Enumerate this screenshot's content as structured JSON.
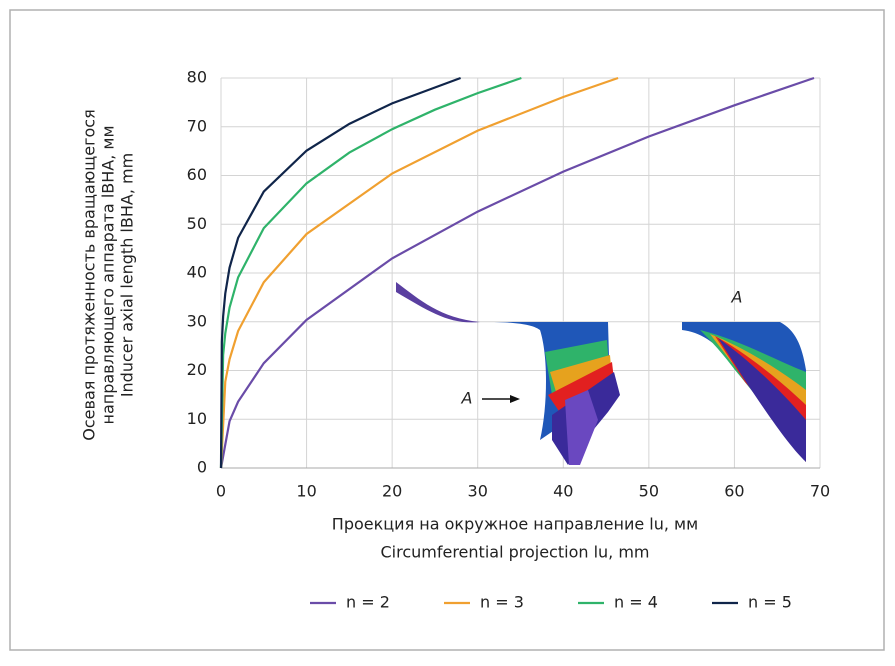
{
  "chart_data": {
    "type": "line",
    "xlabel": [
      "Проекция на окружное направление lu, мм",
      "Circumferential projection lu, mm"
    ],
    "ylabel": [
      "Осевая протяженность вращающегося",
      "направляющего аппарата lВНА, мм",
      "Inducer axial length lВНА, mm"
    ],
    "xlim": [
      0,
      70
    ],
    "xticks": [
      0,
      10,
      20,
      30,
      40,
      50,
      60,
      70
    ],
    "ylim": [
      0,
      80
    ],
    "yticks": [
      0,
      10,
      20,
      30,
      40,
      50,
      60,
      70,
      80
    ],
    "grid": true,
    "legend": "bottom",
    "annotations": [
      "A",
      "A"
    ],
    "series": [
      {
        "name": "n = 2",
        "color": "#6a4ca8",
        "x": [
          0,
          1,
          2,
          5,
          10,
          20,
          30,
          40,
          50,
          60,
          69.3
        ],
        "values": [
          0,
          9.6,
          13.6,
          21.5,
          30.4,
          43.0,
          52.6,
          60.8,
          68.0,
          74.4,
          80
        ]
      },
      {
        "name": "n = 3",
        "color": "#f0a030",
        "x": [
          0,
          0.5,
          1,
          2,
          5,
          10,
          20,
          30,
          40,
          46.4
        ],
        "values": [
          0,
          17.7,
          22.3,
          28.1,
          38.1,
          48.0,
          60.4,
          69.2,
          76.1,
          80
        ]
      },
      {
        "name": "n = 4",
        "color": "#2fb36a",
        "x": [
          0,
          0.25,
          0.5,
          1,
          2,
          5,
          10,
          15,
          20,
          25,
          30,
          35.1
        ],
        "values": [
          0,
          23.2,
          27.6,
          32.9,
          39.1,
          49.2,
          58.4,
          64.7,
          69.5,
          73.5,
          76.9,
          80
        ]
      },
      {
        "name": "n = 5",
        "color": "#10254a",
        "x": [
          0,
          0.1,
          0.25,
          0.5,
          1,
          2,
          5,
          10,
          15,
          20,
          28
        ],
        "values": [
          0,
          25.9,
          31.1,
          35.8,
          41.1,
          47.2,
          56.7,
          65.1,
          70.6,
          74.8,
          80
        ]
      }
    ]
  }
}
